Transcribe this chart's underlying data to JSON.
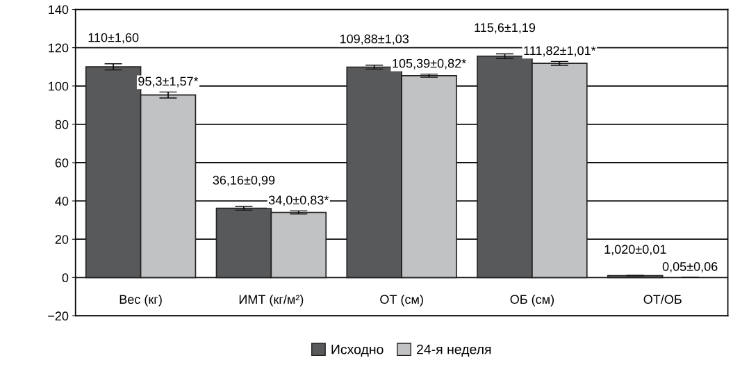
{
  "chart_data": {
    "type": "bar",
    "categories": [
      "Вес (кг)",
      "ИМТ (кг/м²)",
      "ОТ (см)",
      "ОБ (см)",
      "ОТ/ОБ"
    ],
    "series": [
      {
        "name": "Исходно",
        "color": "#58595b",
        "values": [
          110,
          36.16,
          109.88,
          115.6,
          1.02
        ],
        "errors": [
          1.6,
          0.99,
          1.03,
          1.19,
          0.01
        ],
        "value_labels": [
          "110±1,60",
          "36,16±0,99",
          "109,88±1,03",
          "115,6±1,19",
          "1,020±0,01"
        ]
      },
      {
        "name": "24-я неделя",
        "color": "#c0c2c4",
        "values": [
          95.3,
          34.0,
          105.39,
          111.82,
          0.05
        ],
        "errors": [
          1.57,
          0.83,
          0.82,
          1.01,
          0.06
        ],
        "value_labels": [
          "95,3±1,57*",
          "34,0±0,83*",
          "105,39±0,82*",
          "111,82±1,01*",
          "0,05±0,06"
        ]
      }
    ],
    "ylim": [
      -20,
      140
    ],
    "yticks": [
      {
        "value": -20,
        "label": "−20"
      },
      0,
      20,
      40,
      60,
      80,
      100,
      120,
      140
    ],
    "grid": "y",
    "legend": "bottom"
  }
}
